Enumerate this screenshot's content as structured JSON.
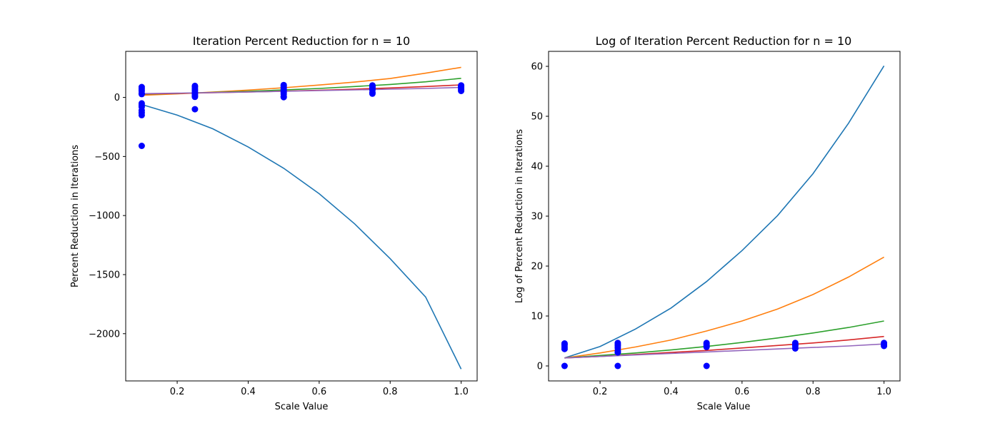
{
  "chart_data": [
    {
      "type": "scatter",
      "title": "Iteration Percent Reduction for n = 10",
      "xlabel": "Scale Value",
      "ylabel": "Percent Reduction in Iterations",
      "xlim": [
        0.055,
        1.045
      ],
      "ylim": [
        -2400,
        390
      ],
      "xticks": [
        0.2,
        0.4,
        0.6,
        0.8,
        1.0
      ],
      "xtick_labels": [
        "0.2",
        "0.4",
        "0.6",
        "0.8",
        "1.0"
      ],
      "yticks": [
        -2000,
        -1500,
        -1000,
        -500,
        0
      ],
      "ytick_labels": [
        "−2000",
        "−1500",
        "−1000",
        "−500",
        "0"
      ],
      "scatter": {
        "color": "#0000ff",
        "points": [
          [
            0.1,
            88
          ],
          [
            0.1,
            72
          ],
          [
            0.1,
            55
          ],
          [
            0.1,
            35
          ],
          [
            0.1,
            28
          ],
          [
            0.1,
            -50
          ],
          [
            0.1,
            -65
          ],
          [
            0.1,
            -80
          ],
          [
            0.1,
            -110
          ],
          [
            0.1,
            -130
          ],
          [
            0.1,
            -150
          ],
          [
            0.1,
            -410
          ],
          [
            0.25,
            98
          ],
          [
            0.25,
            88
          ],
          [
            0.25,
            72
          ],
          [
            0.25,
            58
          ],
          [
            0.25,
            42
          ],
          [
            0.25,
            28
          ],
          [
            0.25,
            15
          ],
          [
            0.25,
            5
          ],
          [
            0.25,
            -100
          ],
          [
            0.5,
            105
          ],
          [
            0.5,
            95
          ],
          [
            0.5,
            82
          ],
          [
            0.5,
            68
          ],
          [
            0.5,
            55
          ],
          [
            0.5,
            42
          ],
          [
            0.5,
            28
          ],
          [
            0.5,
            8
          ],
          [
            0.5,
            2
          ],
          [
            0.75,
            102
          ],
          [
            0.75,
            95
          ],
          [
            0.75,
            88
          ],
          [
            0.75,
            78
          ],
          [
            0.75,
            66
          ],
          [
            0.75,
            42
          ],
          [
            0.75,
            32
          ],
          [
            1.0,
            102
          ],
          [
            1.0,
            95
          ],
          [
            1.0,
            88
          ],
          [
            1.0,
            78
          ],
          [
            1.0,
            66
          ],
          [
            1.0,
            55
          ]
        ]
      },
      "series": [
        {
          "color": "#1f77b4",
          "x": [
            0.1,
            0.2,
            0.3,
            0.4,
            0.5,
            0.6,
            0.7,
            0.8,
            0.9,
            1.0
          ],
          "values": [
            -60,
            -150,
            -265,
            -420,
            -600,
            -815,
            -1070,
            -1365,
            -1690,
            -2300
          ]
        },
        {
          "color": "#ff7f0e",
          "x": [
            0.1,
            0.2,
            0.3,
            0.4,
            0.5,
            0.6,
            0.7,
            0.8,
            0.9,
            1.0
          ],
          "values": [
            18,
            30,
            45,
            62,
            82,
            105,
            130,
            160,
            205,
            255
          ]
        },
        {
          "color": "#2ca02c",
          "x": [
            0.1,
            0.2,
            0.3,
            0.4,
            0.5,
            0.6,
            0.7,
            0.8,
            0.9,
            1.0
          ],
          "values": [
            28,
            34,
            42,
            52,
            63,
            76,
            92,
            110,
            132,
            162
          ]
        },
        {
          "color": "#d62728",
          "x": [
            0.1,
            0.2,
            0.3,
            0.4,
            0.5,
            0.6,
            0.7,
            0.8,
            0.9,
            1.0
          ],
          "values": [
            30,
            34,
            40,
            46,
            53,
            61,
            70,
            80,
            92,
            106
          ]
        },
        {
          "color": "#9467bd",
          "x": [
            0.1,
            0.2,
            0.3,
            0.4,
            0.5,
            0.6,
            0.7,
            0.8,
            0.9,
            1.0
          ],
          "values": [
            32,
            36,
            41,
            46,
            52,
            58,
            64,
            70,
            76,
            85
          ]
        }
      ]
    },
    {
      "type": "scatter",
      "title": "Log of Iteration Percent Reduction for n = 10",
      "xlabel": "Scale Value",
      "ylabel": "Log of Percent Reduction in Iterations",
      "xlim": [
        0.055,
        1.045
      ],
      "ylim": [
        -3.0,
        63.0
      ],
      "xticks": [
        0.2,
        0.4,
        0.6,
        0.8,
        1.0
      ],
      "xtick_labels": [
        "0.2",
        "0.4",
        "0.6",
        "0.8",
        "1.0"
      ],
      "yticks": [
        0,
        10,
        20,
        30,
        40,
        50,
        60
      ],
      "ytick_labels": [
        "0",
        "10",
        "20",
        "30",
        "40",
        "50",
        "60"
      ],
      "scatter": {
        "color": "#0000ff",
        "points": [
          [
            0.1,
            4.5
          ],
          [
            0.1,
            4.2
          ],
          [
            0.1,
            3.8
          ],
          [
            0.1,
            3.4
          ],
          [
            0.1,
            0
          ],
          [
            0.25,
            4.6
          ],
          [
            0.25,
            4.3
          ],
          [
            0.25,
            4.0
          ],
          [
            0.25,
            3.6
          ],
          [
            0.25,
            3.0
          ],
          [
            0.25,
            2.7
          ],
          [
            0.25,
            0
          ],
          [
            0.5,
            4.6
          ],
          [
            0.5,
            4.4
          ],
          [
            0.5,
            4.1
          ],
          [
            0.5,
            3.8
          ],
          [
            0.5,
            0
          ],
          [
            0.75,
            4.6
          ],
          [
            0.75,
            4.3
          ],
          [
            0.75,
            4.0
          ],
          [
            0.75,
            3.5
          ],
          [
            1.0,
            4.6
          ],
          [
            1.0,
            4.3
          ],
          [
            1.0,
            4.0
          ]
        ]
      },
      "series": [
        {
          "color": "#1f77b4",
          "x": [
            0.1,
            0.2,
            0.3,
            0.4,
            0.5,
            0.6,
            0.7,
            0.8,
            0.9,
            1.0
          ],
          "values": [
            1.6,
            3.9,
            7.4,
            11.6,
            16.9,
            23.1,
            30.1,
            38.5,
            48.6,
            60.1
          ]
        },
        {
          "color": "#ff7f0e",
          "x": [
            0.1,
            0.2,
            0.3,
            0.4,
            0.5,
            0.6,
            0.7,
            0.8,
            0.9,
            1.0
          ],
          "values": [
            1.6,
            2.6,
            3.8,
            5.2,
            7.0,
            9.0,
            11.4,
            14.3,
            17.8,
            21.8
          ]
        },
        {
          "color": "#2ca02c",
          "x": [
            0.1,
            0.2,
            0.3,
            0.4,
            0.5,
            0.6,
            0.7,
            0.8,
            0.9,
            1.0
          ],
          "values": [
            1.6,
            2.1,
            2.6,
            3.2,
            3.9,
            4.7,
            5.6,
            6.6,
            7.7,
            9.0
          ]
        },
        {
          "color": "#d62728",
          "x": [
            0.1,
            0.2,
            0.3,
            0.4,
            0.5,
            0.6,
            0.7,
            0.8,
            0.9,
            1.0
          ],
          "values": [
            1.6,
            1.9,
            2.3,
            2.7,
            3.1,
            3.6,
            4.1,
            4.6,
            5.2,
            5.9
          ]
        },
        {
          "color": "#9467bd",
          "x": [
            0.1,
            0.2,
            0.3,
            0.4,
            0.5,
            0.6,
            0.7,
            0.8,
            0.9,
            1.0
          ],
          "values": [
            1.6,
            1.9,
            2.2,
            2.5,
            2.8,
            3.1,
            3.4,
            3.7,
            4.0,
            4.4
          ]
        }
      ]
    }
  ]
}
